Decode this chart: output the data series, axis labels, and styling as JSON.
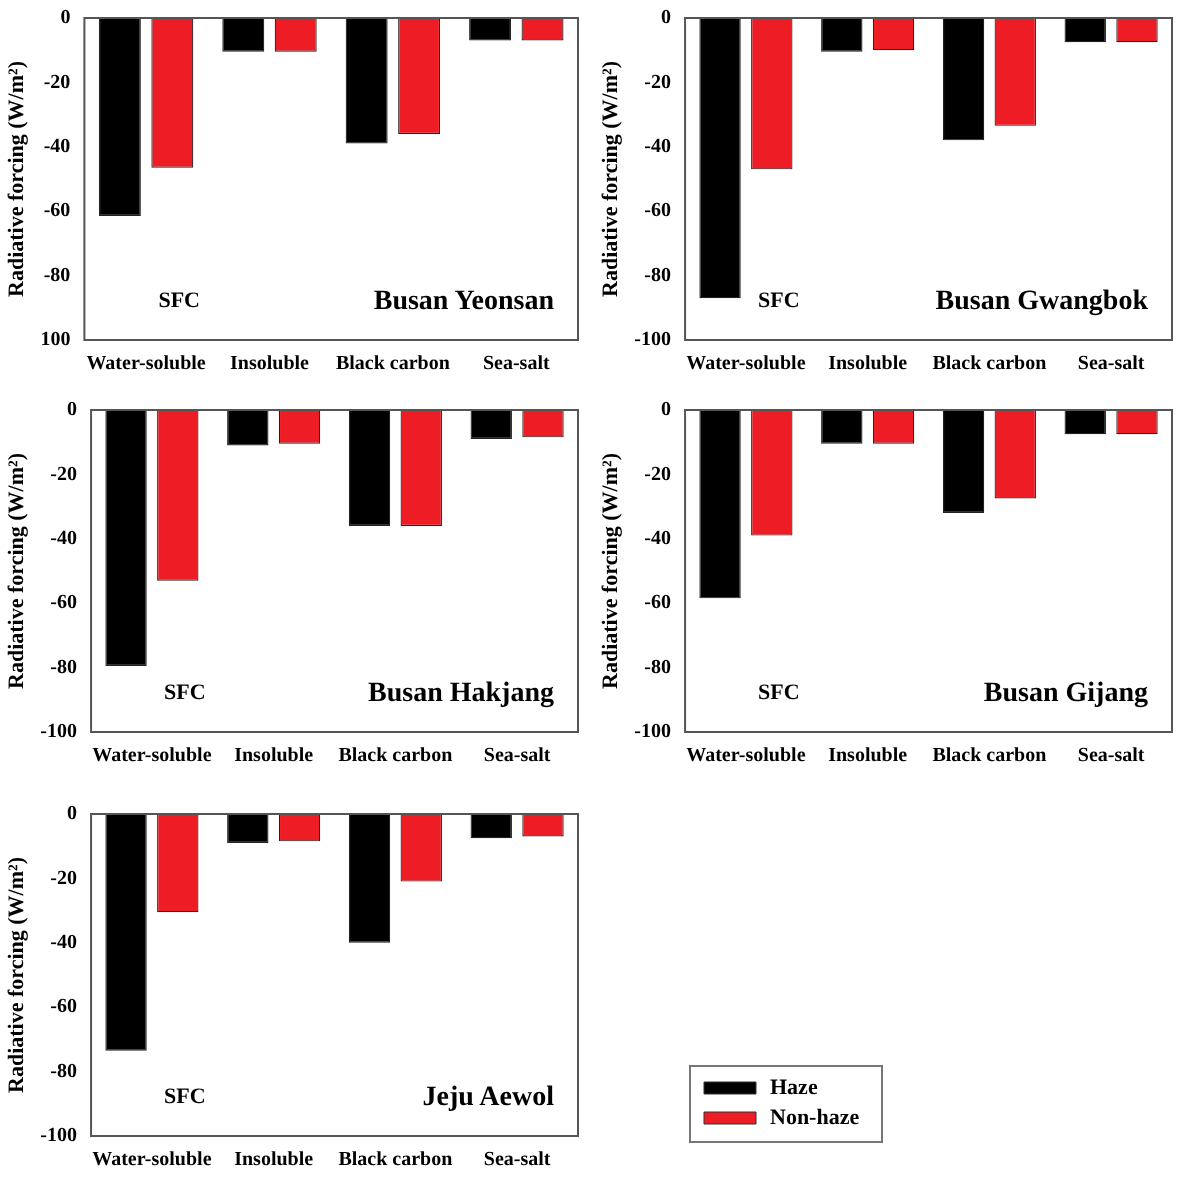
{
  "chart_data": [
    {
      "type": "bar",
      "ylabel": "Radiative forcing (W/m²)",
      "categories": [
        "Water-soluble",
        "Insoluble",
        "Black carbon",
        "Sea-salt"
      ],
      "series": [
        {
          "color": "#000000",
          "values": [
            -61.5,
            -10.5,
            -39,
            -7
          ]
        },
        {
          "color": "#ee1c24",
          "values": [
            -46.5,
            -10.5,
            -36,
            -7
          ]
        }
      ],
      "ylim": [
        -100,
        0
      ],
      "yticks": [
        {
          "value": -100,
          "label": "100"
        },
        -80,
        -60,
        -40,
        -20,
        0
      ],
      "grid": false,
      "legend": false,
      "annotations": [
        "SFC",
        "Busan Yeonsan"
      ]
    },
    {
      "type": "bar",
      "ylabel": "Radiative forcing (W/m²)",
      "categories": [
        "Water-soluble",
        "Insoluble",
        "Black carbon",
        "Sea-salt"
      ],
      "series": [
        {
          "color": "#000000",
          "values": [
            -87,
            -10.5,
            -38,
            -7.5
          ]
        },
        {
          "color": "#ee1c24",
          "values": [
            -47,
            -10,
            -33.5,
            -7.5
          ]
        }
      ],
      "ylim": [
        -100,
        0
      ],
      "yticks": [
        -100,
        -80,
        -60,
        -40,
        -20,
        0
      ],
      "grid": false,
      "legend": false,
      "annotations": [
        "SFC",
        "Busan Gwangbok"
      ]
    },
    {
      "type": "bar",
      "ylabel": "Radiative forcing (W/m²)",
      "categories": [
        "Water-soluble",
        "Insoluble",
        "Black carbon",
        "Sea-salt"
      ],
      "series": [
        {
          "color": "#000000",
          "values": [
            -79.5,
            -11,
            -36,
            -9
          ]
        },
        {
          "color": "#ee1c24",
          "values": [
            -53,
            -10.5,
            -36,
            -8.5
          ]
        }
      ],
      "ylim": [
        -100,
        0
      ],
      "yticks": [
        -100,
        -80,
        -60,
        -40,
        -20,
        0
      ],
      "grid": false,
      "legend": false,
      "annotations": [
        "SFC",
        "Busan Hakjang"
      ]
    },
    {
      "type": "bar",
      "ylabel": "Radiative forcing (W/m²)",
      "categories": [
        "Water-soluble",
        "Insoluble",
        "Black carbon",
        "Sea-salt"
      ],
      "series": [
        {
          "color": "#000000",
          "values": [
            -58.5,
            -10.5,
            -32,
            -7.5
          ]
        },
        {
          "color": "#ee1c24",
          "values": [
            -39,
            -10.5,
            -27.5,
            -7.5
          ]
        }
      ],
      "ylim": [
        -100,
        0
      ],
      "yticks": [
        -100,
        -80,
        -60,
        -40,
        -20,
        0
      ],
      "grid": false,
      "legend": false,
      "annotations": [
        "SFC",
        "Busan Gijang"
      ]
    },
    {
      "type": "bar",
      "ylabel": "Radiative forcing (W/m²)",
      "categories": [
        "Water-soluble",
        "Insoluble",
        "Black carbon",
        "Sea-salt"
      ],
      "series": [
        {
          "name": "Haze",
          "color": "#000000",
          "values": [
            -73.5,
            -9,
            -40,
            -7.5
          ]
        },
        {
          "name": "Non-haze",
          "color": "#ee1c24",
          "values": [
            -30.5,
            -8.5,
            -21,
            -7
          ]
        }
      ],
      "ylim": [
        -100,
        0
      ],
      "yticks": [
        -100,
        -80,
        -60,
        -40,
        -20,
        0
      ],
      "grid": false,
      "legend": "right",
      "annotations": [
        "SFC",
        "Jeju Aewol"
      ]
    }
  ]
}
